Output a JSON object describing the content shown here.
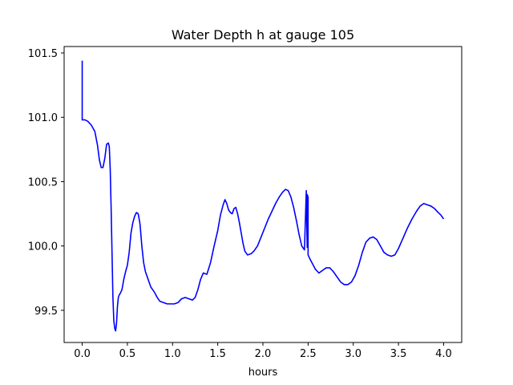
{
  "chart_data": {
    "type": "line",
    "title": "Water Depth h at gauge 105",
    "xlabel": "hours",
    "ylabel": "",
    "xlim": [
      -0.2,
      4.2
    ],
    "ylim": [
      99.25,
      101.55
    ],
    "grid": false,
    "legend": "none",
    "xticks": [
      0.0,
      0.5,
      1.0,
      1.5,
      2.0,
      2.5,
      3.0,
      3.5,
      4.0
    ],
    "xtick_labels": [
      "0.0",
      "0.5",
      "1.0",
      "1.5",
      "2.0",
      "2.5",
      "3.0",
      "3.5",
      "4.0"
    ],
    "yticks": [
      99.5,
      100.0,
      100.5,
      101.0,
      101.5
    ],
    "ytick_labels": [
      "99.5",
      "100.0",
      "100.5",
      "101.0",
      "101.5"
    ],
    "series": [
      {
        "color": "#0000ff",
        "x": [
          0.0,
          0.0,
          0.0,
          0.03,
          0.06,
          0.1,
          0.14,
          0.17,
          0.19,
          0.21,
          0.23,
          0.25,
          0.27,
          0.29,
          0.3,
          0.31,
          0.32,
          0.33,
          0.34,
          0.35,
          0.36,
          0.37,
          0.38,
          0.39,
          0.4,
          0.41,
          0.42,
          0.44,
          0.46,
          0.48,
          0.5,
          0.52,
          0.54,
          0.56,
          0.58,
          0.6,
          0.62,
          0.64,
          0.66,
          0.68,
          0.7,
          0.72,
          0.74,
          0.76,
          0.78,
          0.8,
          0.83,
          0.86,
          0.9,
          0.94,
          0.98,
          1.02,
          1.06,
          1.1,
          1.14,
          1.18,
          1.22,
          1.25,
          1.28,
          1.31,
          1.34,
          1.38,
          1.42,
          1.46,
          1.5,
          1.53,
          1.56,
          1.58,
          1.6,
          1.62,
          1.64,
          1.66,
          1.68,
          1.7,
          1.72,
          1.74,
          1.76,
          1.78,
          1.8,
          1.83,
          1.87,
          1.9,
          1.94,
          1.98,
          2.02,
          2.06,
          2.1,
          2.14,
          2.18,
          2.22,
          2.25,
          2.28,
          2.31,
          2.34,
          2.37,
          2.4,
          2.43,
          2.46,
          2.48,
          2.48,
          2.49,
          2.49,
          2.5,
          2.5,
          2.52,
          2.55,
          2.58,
          2.62,
          2.66,
          2.7,
          2.74,
          2.78,
          2.82,
          2.86,
          2.9,
          2.94,
          2.98,
          3.02,
          3.06,
          3.1,
          3.14,
          3.18,
          3.22,
          3.26,
          3.3,
          3.34,
          3.38,
          3.42,
          3.46,
          3.5,
          3.55,
          3.6,
          3.65,
          3.7,
          3.74,
          3.78,
          3.82,
          3.86,
          3.9,
          3.94,
          3.97,
          4.0
        ],
        "y": [
          101.44,
          101.2,
          100.98,
          100.98,
          100.97,
          100.94,
          100.89,
          100.78,
          100.67,
          100.61,
          100.61,
          100.68,
          100.79,
          100.8,
          100.77,
          100.6,
          100.3,
          99.95,
          99.6,
          99.42,
          99.36,
          99.34,
          99.4,
          99.53,
          99.6,
          99.62,
          99.63,
          99.66,
          99.74,
          99.8,
          99.85,
          99.95,
          100.1,
          100.18,
          100.23,
          100.26,
          100.25,
          100.17,
          100.0,
          99.87,
          99.8,
          99.76,
          99.72,
          99.68,
          99.66,
          99.64,
          99.6,
          99.57,
          99.56,
          99.55,
          99.55,
          99.55,
          99.56,
          99.59,
          99.6,
          99.59,
          99.58,
          99.6,
          99.66,
          99.74,
          99.79,
          99.78,
          99.87,
          100.0,
          100.12,
          100.24,
          100.32,
          100.36,
          100.33,
          100.28,
          100.26,
          100.25,
          100.29,
          100.3,
          100.25,
          100.18,
          100.1,
          100.02,
          99.96,
          99.93,
          99.94,
          99.96,
          100.0,
          100.07,
          100.14,
          100.21,
          100.27,
          100.33,
          100.38,
          100.42,
          100.44,
          100.43,
          100.38,
          100.3,
          100.2,
          100.09,
          100.0,
          99.97,
          100.43,
          100.38,
          99.99,
          100.4,
          100.38,
          99.93,
          99.9,
          99.86,
          99.82,
          99.79,
          99.81,
          99.83,
          99.83,
          99.8,
          99.76,
          99.72,
          99.7,
          99.7,
          99.72,
          99.77,
          99.85,
          99.95,
          100.03,
          100.06,
          100.07,
          100.05,
          100.0,
          99.95,
          99.93,
          99.92,
          99.93,
          99.98,
          100.06,
          100.14,
          100.21,
          100.27,
          100.31,
          100.33,
          100.32,
          100.31,
          100.29,
          100.26,
          100.24,
          100.21
        ]
      }
    ]
  }
}
